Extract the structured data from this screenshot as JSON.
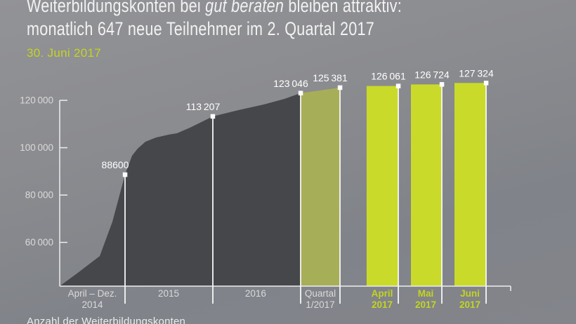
{
  "header": {
    "title_prefix": "Weiterbildungskonten bei ",
    "title_italic": "gut beraten",
    "title_suffix": " bleiben attraktiv:",
    "title_line2": "monatlich 647 neue Teilnehmer im 2. Quartal 2017",
    "date": "30. Juni 2017"
  },
  "footer": {
    "caption": "Anzahl der Weiterbildungskonten"
  },
  "colors": {
    "accent": "#c9da2a",
    "olive": "#a7ae58",
    "area_dark": "#46474a",
    "axis_line": "#ededed",
    "marker_line": "#f7f7f7",
    "marker_fill": "#ffffff",
    "value_label": "#ffffff",
    "tick_text": "#dadada",
    "category_text": "#d9d9da",
    "title_text": "#f2f2f2",
    "date_text": "#c5d41f"
  },
  "chart_data": {
    "type": "area+bar",
    "title": "Weiterbildungskonten bei gut beraten bleiben attraktiv: monatlich 647 neue Teilnehmer im 2. Quartal 2017",
    "subtitle_date": "30. Juni 2017",
    "ylabel": "Anzahl der Weiterbildungskonten",
    "grid": false,
    "legend": false,
    "baseline_value": 41500,
    "ylim": [
      41500,
      128500
    ],
    "y_axis": {
      "ticks": [
        {
          "v": 120000,
          "label": "120 000"
        },
        {
          "v": 100000,
          "label": "100 000"
        },
        {
          "v": 80000,
          "label": "80 000"
        },
        {
          "v": 60000,
          "label": "60 000"
        }
      ]
    },
    "area": {
      "name": "kumulierte-weiterbildungskonten-2014-2016",
      "points": [
        [
          0.0,
          41500
        ],
        [
          0.0421,
          47400
        ],
        [
          0.0888,
          54200
        ],
        [
          0.1168,
          68700
        ],
        [
          0.1449,
          88600
        ],
        [
          0.1604,
          96600
        ],
        [
          0.1729,
          99600
        ],
        [
          0.19,
          102500
        ],
        [
          0.2134,
          104300
        ],
        [
          0.2414,
          105500
        ],
        [
          0.2601,
          106100
        ],
        [
          0.2882,
          108400
        ],
        [
          0.3395,
          113207
        ],
        [
          0.3972,
          115900
        ],
        [
          0.4517,
          118200
        ],
        [
          0.4984,
          120600
        ],
        [
          0.5343,
          123046
        ]
      ]
    },
    "quartal_segment": {
      "id": "quartal-1-2017",
      "x0": 0.5343,
      "v0": 123046,
      "x1": 0.6215,
      "v1": 125381
    },
    "bars": [
      {
        "id": "april-2017",
        "x0": 0.6806,
        "x1": 0.7508,
        "value": 126061
      },
      {
        "id": "mai-2017",
        "x0": 0.7788,
        "x1": 0.8474,
        "value": 126724
      },
      {
        "id": "juni-2017",
        "x0": 0.8754,
        "x1": 0.9455,
        "value": 127324
      }
    ],
    "markers": [
      {
        "x": 0.1449,
        "value": 88600,
        "label": "88600"
      },
      {
        "x": 0.3395,
        "value": 113207,
        "label": "113 207"
      },
      {
        "x": 0.5343,
        "value": 123046,
        "label": "123 046"
      },
      {
        "x": 0.6215,
        "value": 125381,
        "label": "125 381"
      },
      {
        "x": 0.7508,
        "value": 126061,
        "label": "126 061"
      },
      {
        "x": 0.8474,
        "value": 126724,
        "label": "126 724"
      },
      {
        "x": 0.9455,
        "value": 127324,
        "label": "127 324"
      }
    ],
    "x_categories": [
      {
        "id": "april-dez-2014",
        "x": 0.0724,
        "line1": "April – Dez.",
        "line2": "2014",
        "highlight": false
      },
      {
        "id": "2015",
        "x": 0.2414,
        "line1": "2015",
        "line2": "",
        "highlight": false
      },
      {
        "id": "2016",
        "x": 0.4345,
        "line1": "2016",
        "line2": "",
        "highlight": false
      },
      {
        "id": "quartal-1-2017",
        "x": 0.5779,
        "line1": "Quartal",
        "line2": "1/2017",
        "highlight": false
      },
      {
        "id": "april-2017",
        "x": 0.715,
        "line1": "April",
        "line2": "2017",
        "highlight": true
      },
      {
        "id": "mai-2017",
        "x": 0.8115,
        "line1": "Mai",
        "line2": "2017",
        "highlight": true
      },
      {
        "id": "juni-2017",
        "x": 0.9096,
        "line1": "Juni",
        "line2": "2017",
        "highlight": true
      }
    ]
  }
}
